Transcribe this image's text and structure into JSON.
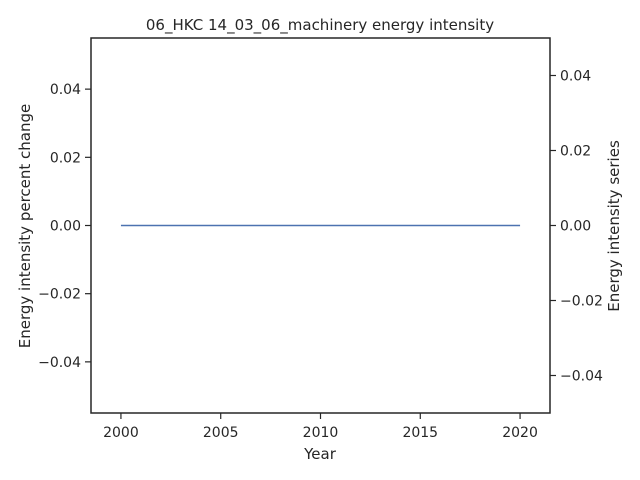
{
  "chart_data": {
    "type": "line",
    "title": "06_HKC 14_03_06_machinery energy intensity",
    "xlabel": "Year",
    "ylabel": "Energy intensity percent change",
    "ylabel_right": "Energy intensity series",
    "xlim": [
      1998.5,
      2021.5
    ],
    "ylim": [
      -0.055,
      0.055
    ],
    "ylim_right": [
      -0.05,
      0.05
    ],
    "x_ticks": [
      2000,
      2005,
      2010,
      2015,
      2020
    ],
    "x_tick_labels": [
      "2000",
      "2005",
      "2010",
      "2015",
      "2020"
    ],
    "y_ticks": [
      0.04,
      0.02,
      0.0,
      -0.02,
      -0.04
    ],
    "y_tick_labels": [
      "0.04",
      "0.02",
      "0.00",
      "−0.02",
      "−0.04"
    ],
    "y_ticks_right": [
      0.04,
      0.02,
      0.0,
      -0.02,
      -0.04
    ],
    "y_tick_labels_right": [
      "0.04",
      "0.02",
      "0.00",
      "−0.02",
      "−0.04"
    ],
    "grid": false,
    "series": [
      {
        "axis": "left",
        "color": "#4c72b0",
        "x": [
          2000,
          2001,
          2002,
          2003,
          2004,
          2005,
          2006,
          2007,
          2008,
          2009,
          2010,
          2011,
          2012,
          2013,
          2014,
          2015,
          2016,
          2017,
          2018,
          2019,
          2020
        ],
        "y": [
          0,
          0,
          0,
          0,
          0,
          0,
          0,
          0,
          0,
          0,
          0,
          0,
          0,
          0,
          0,
          0,
          0,
          0,
          0,
          0,
          0
        ]
      }
    ]
  }
}
